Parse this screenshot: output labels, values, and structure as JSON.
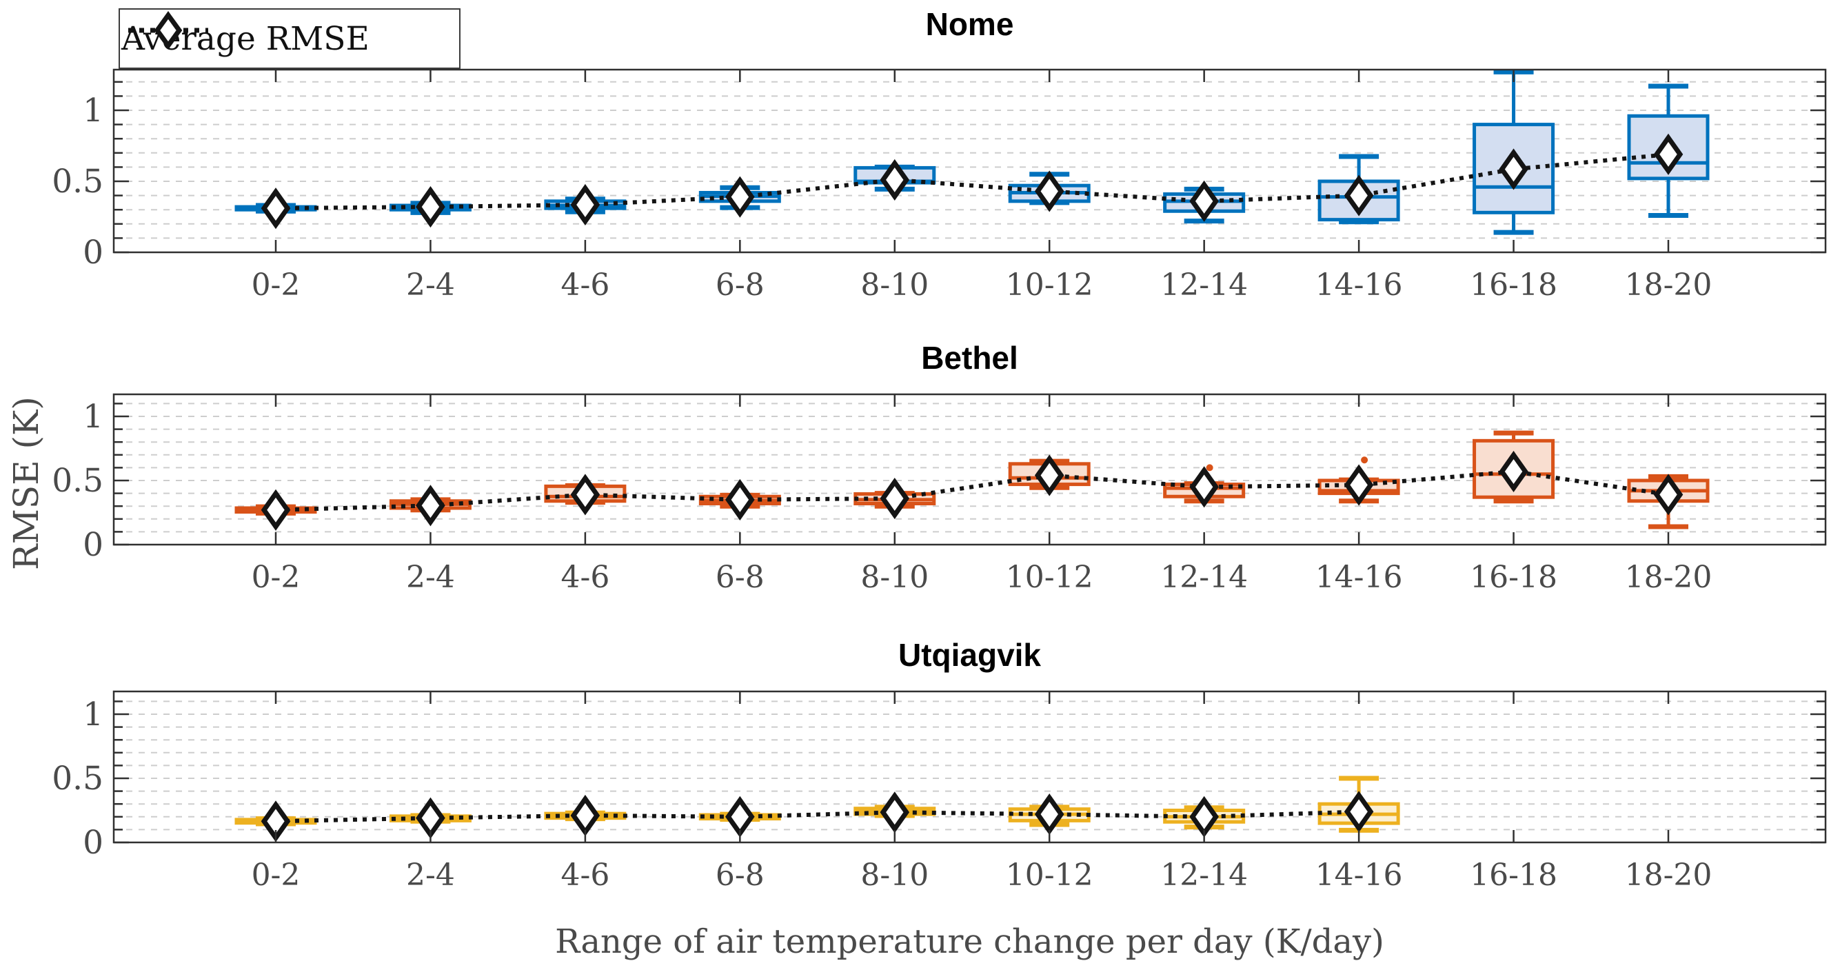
{
  "figure": {
    "legend": {
      "label": "Average RMSE"
    },
    "xlabel": "Range of air temperature change per day (K/day)",
    "ylabel": "RMSE (K)",
    "categories": [
      "0-2",
      "2-4",
      "4-6",
      "6-8",
      "8-10",
      "10-12",
      "12-14",
      "14-16",
      "16-18",
      "18-20"
    ],
    "ytick_labels": [
      "0",
      "0.5",
      "1"
    ],
    "ytick_values": [
      0,
      0.5,
      1
    ],
    "minor_grid_step": 0.1
  },
  "colors": {
    "nome_edge": "#0072BD",
    "nome_fill": "#d3def1",
    "bethel_edge": "#D95319",
    "bethel_fill": "#f9ded0",
    "utqiagvik_edge": "#EDB120",
    "utqiagvik_fill": "#fcf0d4",
    "mean_line": "#141414",
    "mean_face": "#ffffff",
    "axis": "#303030",
    "tick_label": "#4a4a4a",
    "grid": "#cdcdcd"
  },
  "chart_data": [
    {
      "type": "box",
      "title": "Nome",
      "categories": [
        "0-2",
        "2-4",
        "4-6",
        "6-8",
        "8-10",
        "10-12",
        "12-14",
        "14-16",
        "16-18",
        "18-20"
      ],
      "ylim": [
        0,
        1.28
      ],
      "grid": "y-minor-dashed",
      "legend_position": "top-left-outside",
      "boxes": [
        {
          "whisker_low": 0.29,
          "q1": 0.3,
          "median": 0.31,
          "q3": 0.32,
          "whisker_high": 0.33,
          "mean": 0.31,
          "outliers": []
        },
        {
          "whisker_low": 0.28,
          "q1": 0.3,
          "median": 0.315,
          "q3": 0.33,
          "whisker_high": 0.345,
          "mean": 0.32,
          "outliers": []
        },
        {
          "whisker_low": 0.285,
          "q1": 0.31,
          "median": 0.33,
          "q3": 0.36,
          "whisker_high": 0.375,
          "mean": 0.335,
          "outliers": []
        },
        {
          "whisker_low": 0.315,
          "q1": 0.36,
          "median": 0.395,
          "q3": 0.42,
          "whisker_high": 0.455,
          "mean": 0.39,
          "outliers": []
        },
        {
          "whisker_low": 0.445,
          "q1": 0.49,
          "median": 0.5,
          "q3": 0.595,
          "whisker_high": 0.6,
          "mean": 0.51,
          "outliers": []
        },
        {
          "whisker_low": 0.35,
          "q1": 0.36,
          "median": 0.42,
          "q3": 0.47,
          "whisker_high": 0.55,
          "mean": 0.43,
          "outliers": []
        },
        {
          "whisker_low": 0.22,
          "q1": 0.29,
          "median": 0.36,
          "q3": 0.41,
          "whisker_high": 0.445,
          "mean": 0.36,
          "outliers": []
        },
        {
          "whisker_low": 0.215,
          "q1": 0.23,
          "median": 0.39,
          "q3": 0.5,
          "whisker_high": 0.675,
          "mean": 0.4,
          "outliers": []
        },
        {
          "whisker_low": 0.14,
          "q1": 0.28,
          "median": 0.46,
          "q3": 0.9,
          "whisker_high": 1.27,
          "mean": 0.585,
          "outliers": []
        },
        {
          "whisker_low": 0.26,
          "q1": 0.52,
          "median": 0.63,
          "q3": 0.96,
          "whisker_high": 1.17,
          "mean": 0.69,
          "outliers": []
        }
      ],
      "mean_series": [
        0.31,
        0.32,
        0.335,
        0.39,
        0.51,
        0.43,
        0.36,
        0.4,
        0.585,
        0.69
      ]
    },
    {
      "type": "box",
      "title": "Bethel",
      "categories": [
        "0-2",
        "2-4",
        "4-6",
        "6-8",
        "8-10",
        "10-12",
        "12-14",
        "14-16",
        "16-18",
        "18-20"
      ],
      "ylim": [
        0,
        1.17
      ],
      "grid": "y-minor-dashed",
      "boxes": [
        {
          "whisker_low": 0.245,
          "q1": 0.255,
          "median": 0.27,
          "q3": 0.285,
          "whisker_high": 0.295,
          "mean": 0.27,
          "outliers": []
        },
        {
          "whisker_low": 0.27,
          "q1": 0.285,
          "median": 0.315,
          "q3": 0.34,
          "whisker_high": 0.35,
          "mean": 0.305,
          "outliers": []
        },
        {
          "whisker_low": 0.33,
          "q1": 0.34,
          "median": 0.375,
          "q3": 0.455,
          "whisker_high": 0.46,
          "mean": 0.39,
          "outliers": []
        },
        {
          "whisker_low": 0.3,
          "q1": 0.32,
          "median": 0.345,
          "q3": 0.375,
          "whisker_high": 0.385,
          "mean": 0.35,
          "outliers": []
        },
        {
          "whisker_low": 0.3,
          "q1": 0.32,
          "median": 0.35,
          "q3": 0.395,
          "whisker_high": 0.4,
          "mean": 0.36,
          "outliers": []
        },
        {
          "whisker_low": 0.445,
          "q1": 0.47,
          "median": 0.52,
          "q3": 0.63,
          "whisker_high": 0.65,
          "mean": 0.54,
          "outliers": []
        },
        {
          "whisker_low": 0.34,
          "q1": 0.375,
          "median": 0.44,
          "q3": 0.47,
          "whisker_high": 0.475,
          "mean": 0.45,
          "outliers": [
            0.6
          ]
        },
        {
          "whisker_low": 0.34,
          "q1": 0.4,
          "median": 0.42,
          "q3": 0.5,
          "whisker_high": 0.505,
          "mean": 0.465,
          "outliers": [
            0.66
          ]
        },
        {
          "whisker_low": 0.34,
          "q1": 0.37,
          "median": 0.55,
          "q3": 0.81,
          "whisker_high": 0.87,
          "mean": 0.57,
          "outliers": []
        },
        {
          "whisker_low": 0.14,
          "q1": 0.34,
          "median": 0.42,
          "q3": 0.5,
          "whisker_high": 0.53,
          "mean": 0.39,
          "outliers": []
        }
      ],
      "mean_series": [
        0.27,
        0.305,
        0.39,
        0.35,
        0.36,
        0.54,
        0.45,
        0.465,
        0.57,
        0.39
      ]
    },
    {
      "type": "box",
      "title": "Utqiagvik",
      "categories": [
        "0-2",
        "2-4",
        "4-6",
        "6-8",
        "8-10",
        "10-12",
        "12-14",
        "14-16",
        "16-18",
        "18-20"
      ],
      "ylim": [
        0,
        1.17
      ],
      "grid": "y-minor-dashed",
      "boxes": [
        {
          "whisker_low": 0.145,
          "q1": 0.152,
          "median": 0.165,
          "q3": 0.178,
          "whisker_high": 0.185,
          "mean": 0.165,
          "outliers": []
        },
        {
          "whisker_low": 0.165,
          "q1": 0.17,
          "median": 0.19,
          "q3": 0.205,
          "whisker_high": 0.21,
          "mean": 0.19,
          "outliers": []
        },
        {
          "whisker_low": 0.185,
          "q1": 0.19,
          "median": 0.205,
          "q3": 0.225,
          "whisker_high": 0.23,
          "mean": 0.21,
          "outliers": [
            0.155
          ]
        },
        {
          "whisker_low": 0.18,
          "q1": 0.185,
          "median": 0.2,
          "q3": 0.215,
          "whisker_high": 0.22,
          "mean": 0.2,
          "outliers": []
        },
        {
          "whisker_low": 0.21,
          "q1": 0.22,
          "median": 0.24,
          "q3": 0.265,
          "whisker_high": 0.275,
          "mean": 0.235,
          "outliers": []
        },
        {
          "whisker_low": 0.14,
          "q1": 0.17,
          "median": 0.22,
          "q3": 0.26,
          "whisker_high": 0.275,
          "mean": 0.22,
          "outliers": []
        },
        {
          "whisker_low": 0.12,
          "q1": 0.16,
          "median": 0.2,
          "q3": 0.25,
          "whisker_high": 0.27,
          "mean": 0.2,
          "outliers": []
        },
        {
          "whisker_low": 0.095,
          "q1": 0.15,
          "median": 0.22,
          "q3": 0.3,
          "whisker_high": 0.5,
          "mean": 0.24,
          "outliers": []
        },
        null,
        null
      ],
      "mean_series": [
        0.165,
        0.19,
        0.21,
        0.2,
        0.235,
        0.22,
        0.2,
        0.24,
        null,
        null
      ]
    }
  ]
}
